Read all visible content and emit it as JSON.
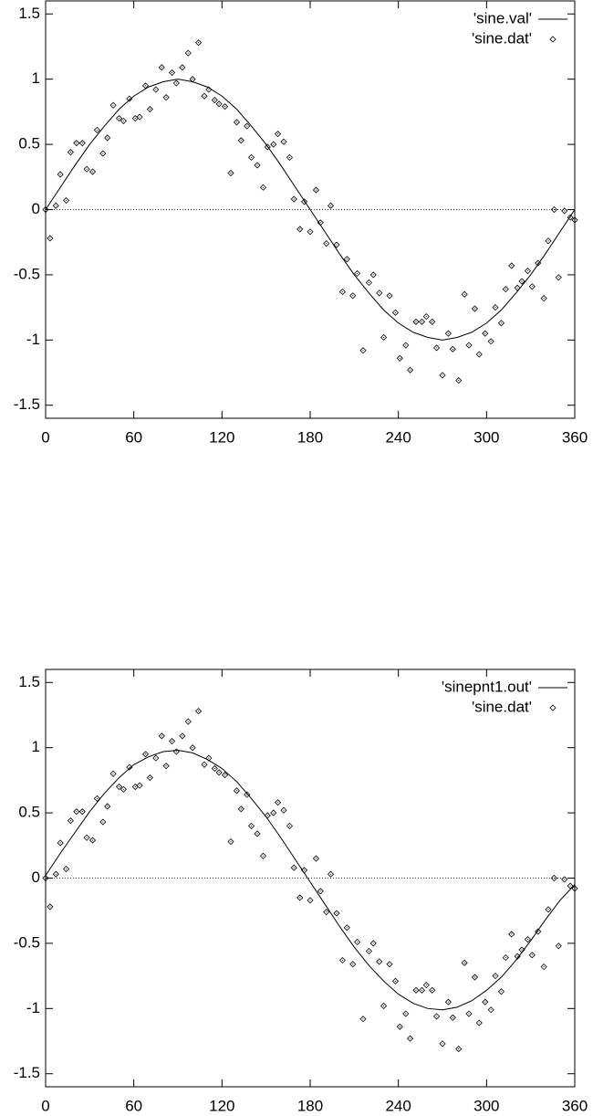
{
  "chart_data": [
    {
      "type": "line",
      "xlim": [
        0,
        360
      ],
      "ylim": [
        -1.6,
        1.6
      ],
      "xticks": [
        0,
        60,
        120,
        180,
        240,
        300,
        360
      ],
      "yticks": [
        1.5,
        1,
        0.5,
        0,
        -0.5,
        -1,
        -1.5
      ],
      "zeroaxis": true,
      "legend": "top-right",
      "series": [
        {
          "name": "'sine.val'",
          "color": "#000000",
          "style": "line",
          "x": [
            0,
            10,
            20,
            30,
            40,
            50,
            60,
            70,
            80,
            90,
            100,
            110,
            120,
            130,
            140,
            150,
            160,
            170,
            180,
            190,
            200,
            210,
            220,
            230,
            240,
            250,
            260,
            270,
            280,
            290,
            300,
            310,
            320,
            330,
            340,
            350,
            360
          ],
          "values": [
            0,
            0.17,
            0.34,
            0.5,
            0.64,
            0.77,
            0.87,
            0.94,
            0.98,
            1,
            0.98,
            0.94,
            0.87,
            0.77,
            0.64,
            0.5,
            0.34,
            0.17,
            0,
            -0.17,
            -0.34,
            -0.5,
            -0.64,
            -0.77,
            -0.87,
            -0.94,
            -0.98,
            -1,
            -0.98,
            -0.94,
            -0.87,
            -0.77,
            -0.64,
            -0.5,
            -0.34,
            -0.17,
            0
          ]
        },
        {
          "name": "'sine.dat'",
          "color": "#000000",
          "style": "points",
          "x": [
            0,
            3,
            7,
            10,
            14,
            17,
            21,
            25,
            28,
            32,
            35,
            39,
            42,
            46,
            50,
            53,
            57,
            61,
            64,
            68,
            71,
            75,
            79,
            82,
            86,
            89,
            93,
            97,
            100,
            104,
            108,
            111,
            115,
            118,
            122,
            126,
            130,
            133,
            137,
            140,
            144,
            148,
            151,
            155,
            158,
            162,
            166,
            169,
            173,
            176,
            180,
            184,
            187,
            191,
            194,
            198,
            202,
            205,
            209,
            212,
            216,
            220,
            223,
            227,
            230,
            234,
            238,
            241,
            245,
            248,
            252,
            256,
            259,
            263,
            266,
            270,
            274,
            277,
            281,
            285,
            288,
            292,
            295,
            299,
            303,
            306,
            310,
            313,
            317,
            321,
            324,
            328,
            331,
            335,
            339,
            342,
            346,
            349,
            353,
            357,
            360
          ],
          "values": [
            0,
            -0.22,
            0.03,
            0.27,
            0.07,
            0.44,
            0.51,
            0.51,
            0.31,
            0.29,
            0.61,
            0.43,
            0.55,
            0.8,
            0.7,
            0.68,
            0.85,
            0.7,
            0.71,
            0.95,
            0.77,
            0.92,
            1.09,
            0.86,
            1.05,
            0.97,
            1.09,
            1.2,
            1,
            1.28,
            0.87,
            0.92,
            0.84,
            0.81,
            0.79,
            0.28,
            0.67,
            0.53,
            0.64,
            0.4,
            0.34,
            0.17,
            0.48,
            0.5,
            0.58,
            0.52,
            0.4,
            0.08,
            -0.15,
            0.06,
            -0.17,
            0.15,
            -0.1,
            -0.26,
            0.03,
            -0.27,
            -0.63,
            -0.38,
            -0.66,
            -0.49,
            -1.08,
            -0.56,
            -0.5,
            -0.64,
            -0.98,
            -0.66,
            -0.79,
            -1.14,
            -1.04,
            -1.23,
            -0.86,
            -0.86,
            -0.82,
            -0.86,
            -1.06,
            -1.27,
            -0.95,
            -1.07,
            -1.31,
            -0.65,
            -1.04,
            -0.76,
            -1.11,
            -0.95,
            -1.01,
            -0.75,
            -0.87,
            -0.61,
            -0.43,
            -0.6,
            -0.55,
            -0.47,
            -0.59,
            -0.41,
            -0.68,
            -0.24,
            0,
            -0.52,
            -0.01,
            -0.06,
            -0.08
          ]
        }
      ]
    },
    {
      "type": "line",
      "xlim": [
        0,
        360
      ],
      "ylim": [
        -1.6,
        1.6
      ],
      "xticks": [
        0,
        60,
        120,
        180,
        240,
        300,
        360
      ],
      "yticks": [
        1.5,
        1,
        0.5,
        0,
        -0.5,
        -1,
        -1.5
      ],
      "zeroaxis": true,
      "legend": "top-right",
      "series": [
        {
          "name": "'sinepnt1.out'",
          "color": "#000000",
          "style": "line",
          "x": [
            0,
            10,
            20,
            30,
            40,
            50,
            60,
            70,
            80,
            90,
            100,
            110,
            120,
            130,
            140,
            150,
            160,
            170,
            180,
            190,
            200,
            210,
            220,
            230,
            240,
            250,
            260,
            270,
            280,
            290,
            300,
            310,
            320,
            330,
            340,
            350,
            360
          ],
          "values": [
            0.02,
            0.19,
            0.35,
            0.51,
            0.65,
            0.77,
            0.87,
            0.93,
            0.97,
            0.98,
            0.96,
            0.91,
            0.84,
            0.74,
            0.61,
            0.47,
            0.31,
            0.14,
            -0.03,
            -0.2,
            -0.37,
            -0.53,
            -0.67,
            -0.79,
            -0.89,
            -0.96,
            -1,
            -1.01,
            -0.99,
            -0.94,
            -0.86,
            -0.76,
            -0.63,
            -0.48,
            -0.32,
            -0.17,
            -0.05
          ]
        },
        {
          "name": "'sine.dat'",
          "color": "#000000",
          "style": "points",
          "x": [
            0,
            3,
            7,
            10,
            14,
            17,
            21,
            25,
            28,
            32,
            35,
            39,
            42,
            46,
            50,
            53,
            57,
            61,
            64,
            68,
            71,
            75,
            79,
            82,
            86,
            89,
            93,
            97,
            100,
            104,
            108,
            111,
            115,
            118,
            122,
            126,
            130,
            133,
            137,
            140,
            144,
            148,
            151,
            155,
            158,
            162,
            166,
            169,
            173,
            176,
            180,
            184,
            187,
            191,
            194,
            198,
            202,
            205,
            209,
            212,
            216,
            220,
            223,
            227,
            230,
            234,
            238,
            241,
            245,
            248,
            252,
            256,
            259,
            263,
            266,
            270,
            274,
            277,
            281,
            285,
            288,
            292,
            295,
            299,
            303,
            306,
            310,
            313,
            317,
            321,
            324,
            328,
            331,
            335,
            339,
            342,
            346,
            349,
            353,
            357,
            360
          ],
          "values": [
            0,
            -0.22,
            0.03,
            0.27,
            0.07,
            0.44,
            0.51,
            0.51,
            0.31,
            0.29,
            0.61,
            0.43,
            0.55,
            0.8,
            0.7,
            0.68,
            0.85,
            0.7,
            0.71,
            0.95,
            0.77,
            0.92,
            1.09,
            0.86,
            1.05,
            0.97,
            1.09,
            1.2,
            1,
            1.28,
            0.87,
            0.92,
            0.84,
            0.81,
            0.79,
            0.28,
            0.67,
            0.53,
            0.64,
            0.4,
            0.34,
            0.17,
            0.48,
            0.5,
            0.58,
            0.52,
            0.4,
            0.08,
            -0.15,
            0.06,
            -0.17,
            0.15,
            -0.1,
            -0.26,
            0.03,
            -0.27,
            -0.63,
            -0.38,
            -0.66,
            -0.49,
            -1.08,
            -0.56,
            -0.5,
            -0.64,
            -0.98,
            -0.66,
            -0.79,
            -1.14,
            -1.04,
            -1.23,
            -0.86,
            -0.86,
            -0.82,
            -0.86,
            -1.06,
            -1.27,
            -0.95,
            -1.07,
            -1.31,
            -0.65,
            -1.04,
            -0.76,
            -1.11,
            -0.95,
            -1.01,
            -0.75,
            -0.87,
            -0.61,
            -0.43,
            -0.6,
            -0.55,
            -0.47,
            -0.59,
            -0.41,
            -0.68,
            -0.24,
            0,
            -0.52,
            -0.01,
            -0.06,
            -0.08
          ]
        }
      ]
    }
  ]
}
